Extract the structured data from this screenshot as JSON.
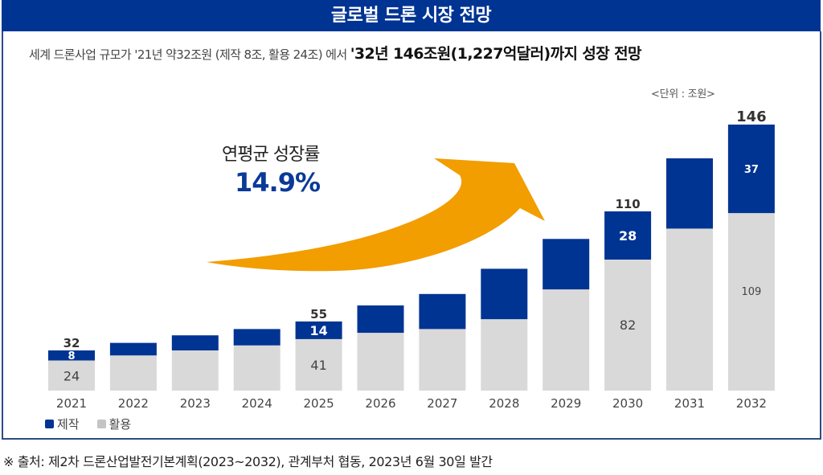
{
  "header": {
    "title": "글로벌 드론 시장 전망"
  },
  "subtitle": {
    "normal": "세계 드론사업 규모가  '21년 약32조원 (제작 8조, 활용 24조) 에서 ",
    "strong": "'32년 146조원(1,227억달러)까지  성장 전망"
  },
  "unit_label": "<단위 : 조원>",
  "growth": {
    "label": "연평균 성장률",
    "value": "14.9%"
  },
  "colors": {
    "manufacturing": "#003493",
    "application": "#d9d9d9",
    "arrow": "#f29d00"
  },
  "chart_data": {
    "type": "bar",
    "stacked": true,
    "title": "글로벌 드론 시장 전망",
    "xlabel": "",
    "ylabel": "",
    "unit": "조원",
    "categories": [
      "2021",
      "2022",
      "2023",
      "2024",
      "2025",
      "2026",
      "2027",
      "2028",
      "2029",
      "2030",
      "2031",
      "2032"
    ],
    "series": [
      {
        "name": "활용",
        "values": [
          24,
          28,
          32,
          36,
          41,
          46,
          49,
          56,
          69,
          82,
          100,
          109
        ]
      },
      {
        "name": "제작",
        "values": [
          8,
          10,
          12,
          13,
          14,
          16,
          18,
          22,
          25,
          28,
          32,
          37
        ]
      }
    ],
    "totals": [
      32,
      38,
      44,
      49,
      55,
      62,
      67,
      78,
      94,
      110,
      132,
      146
    ],
    "data_labels": {
      "totals": {
        "2021": "32",
        "2025": "55",
        "2030": "110",
        "2032": "146"
      },
      "제작": {
        "2021": "8",
        "2025": "14",
        "2030": "28",
        "2032": "37"
      },
      "활용": {
        "2021": "24",
        "2025": "41",
        "2030": "82",
        "2032": "109"
      }
    },
    "annotation": "연평균 성장률 14.9%",
    "legend": [
      "제작",
      "활용"
    ],
    "legend_position": "bottom-left",
    "grid": false
  },
  "legend": {
    "items": [
      {
        "label": "제작"
      },
      {
        "label": "활용"
      }
    ]
  },
  "footer": "※ 출처: 제2차 드론산업발전기본계획(2023~2032), 관계부처 협동, 2023년 6월 30일 발간"
}
